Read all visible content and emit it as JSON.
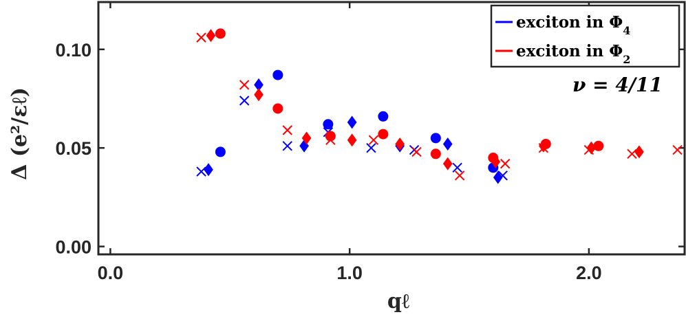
{
  "chart_data": {
    "type": "scatter",
    "xlabel": "qℓ",
    "ylabel": "Δ (e²/εℓ)",
    "xlim": [
      -0.05,
      2.4
    ],
    "ylim": [
      -0.004,
      0.124
    ],
    "x_ticks": [
      0.0,
      1.0,
      2.0
    ],
    "x_tick_labels": [
      "0.0",
      "1.0",
      "2.0"
    ],
    "y_ticks": [
      0.0,
      0.05,
      0.1
    ],
    "y_tick_labels": [
      "0.00",
      "0.05",
      "0.10"
    ],
    "grid": false,
    "legend_position": "top-right",
    "annotation": "ν = 4/11",
    "series": [
      {
        "name": "exciton in Φ4",
        "color": "#0000ff",
        "points": [
          {
            "x": 0.46,
            "y": 0.048,
            "marker": "circle"
          },
          {
            "x": 0.7,
            "y": 0.087,
            "marker": "circle"
          },
          {
            "x": 0.91,
            "y": 0.062,
            "marker": "circle"
          },
          {
            "x": 1.14,
            "y": 0.066,
            "marker": "circle"
          },
          {
            "x": 1.36,
            "y": 0.055,
            "marker": "circle"
          },
          {
            "x": 1.6,
            "y": 0.04,
            "marker": "circle"
          },
          {
            "x": 0.41,
            "y": 0.039,
            "marker": "diamond"
          },
          {
            "x": 0.62,
            "y": 0.082,
            "marker": "diamond"
          },
          {
            "x": 0.81,
            "y": 0.051,
            "marker": "diamond"
          },
          {
            "x": 1.01,
            "y": 0.063,
            "marker": "diamond"
          },
          {
            "x": 1.21,
            "y": 0.051,
            "marker": "diamond"
          },
          {
            "x": 1.41,
            "y": 0.052,
            "marker": "diamond"
          },
          {
            "x": 1.62,
            "y": 0.035,
            "marker": "diamond"
          },
          {
            "x": 0.38,
            "y": 0.038,
            "marker": "x"
          },
          {
            "x": 0.56,
            "y": 0.074,
            "marker": "x"
          },
          {
            "x": 0.74,
            "y": 0.051,
            "marker": "x"
          },
          {
            "x": 0.91,
            "y": 0.058,
            "marker": "x"
          },
          {
            "x": 1.09,
            "y": 0.05,
            "marker": "x"
          },
          {
            "x": 1.27,
            "y": 0.049,
            "marker": "x"
          },
          {
            "x": 1.45,
            "y": 0.04,
            "marker": "x"
          },
          {
            "x": 1.64,
            "y": 0.036,
            "marker": "x"
          }
        ]
      },
      {
        "name": "exciton in Φ2",
        "color": "#ff0000",
        "points": [
          {
            "x": 0.46,
            "y": 0.108,
            "marker": "circle"
          },
          {
            "x": 0.7,
            "y": 0.07,
            "marker": "circle"
          },
          {
            "x": 0.92,
            "y": 0.056,
            "marker": "circle"
          },
          {
            "x": 1.14,
            "y": 0.057,
            "marker": "circle"
          },
          {
            "x": 1.36,
            "y": 0.047,
            "marker": "circle"
          },
          {
            "x": 1.6,
            "y": 0.045,
            "marker": "circle"
          },
          {
            "x": 1.82,
            "y": 0.052,
            "marker": "circle"
          },
          {
            "x": 2.04,
            "y": 0.051,
            "marker": "circle"
          },
          {
            "x": 0.42,
            "y": 0.107,
            "marker": "diamond"
          },
          {
            "x": 0.62,
            "y": 0.077,
            "marker": "diamond"
          },
          {
            "x": 0.82,
            "y": 0.055,
            "marker": "diamond"
          },
          {
            "x": 1.01,
            "y": 0.054,
            "marker": "diamond"
          },
          {
            "x": 1.21,
            "y": 0.052,
            "marker": "diamond"
          },
          {
            "x": 1.41,
            "y": 0.042,
            "marker": "diamond"
          },
          {
            "x": 1.61,
            "y": 0.043,
            "marker": "diamond"
          },
          {
            "x": 1.81,
            "y": 0.051,
            "marker": "diamond"
          },
          {
            "x": 2.01,
            "y": 0.05,
            "marker": "diamond"
          },
          {
            "x": 2.21,
            "y": 0.048,
            "marker": "diamond"
          },
          {
            "x": 0.38,
            "y": 0.106,
            "marker": "x"
          },
          {
            "x": 0.56,
            "y": 0.082,
            "marker": "x"
          },
          {
            "x": 0.74,
            "y": 0.059,
            "marker": "x"
          },
          {
            "x": 0.92,
            "y": 0.054,
            "marker": "x"
          },
          {
            "x": 1.1,
            "y": 0.054,
            "marker": "x"
          },
          {
            "x": 1.28,
            "y": 0.048,
            "marker": "x"
          },
          {
            "x": 1.46,
            "y": 0.036,
            "marker": "x"
          },
          {
            "x": 1.65,
            "y": 0.042,
            "marker": "x"
          },
          {
            "x": 1.81,
            "y": 0.05,
            "marker": "x"
          },
          {
            "x": 2.0,
            "y": 0.049,
            "marker": "x"
          },
          {
            "x": 2.18,
            "y": 0.047,
            "marker": "x"
          },
          {
            "x": 2.37,
            "y": 0.049,
            "marker": "x"
          }
        ]
      }
    ]
  }
}
